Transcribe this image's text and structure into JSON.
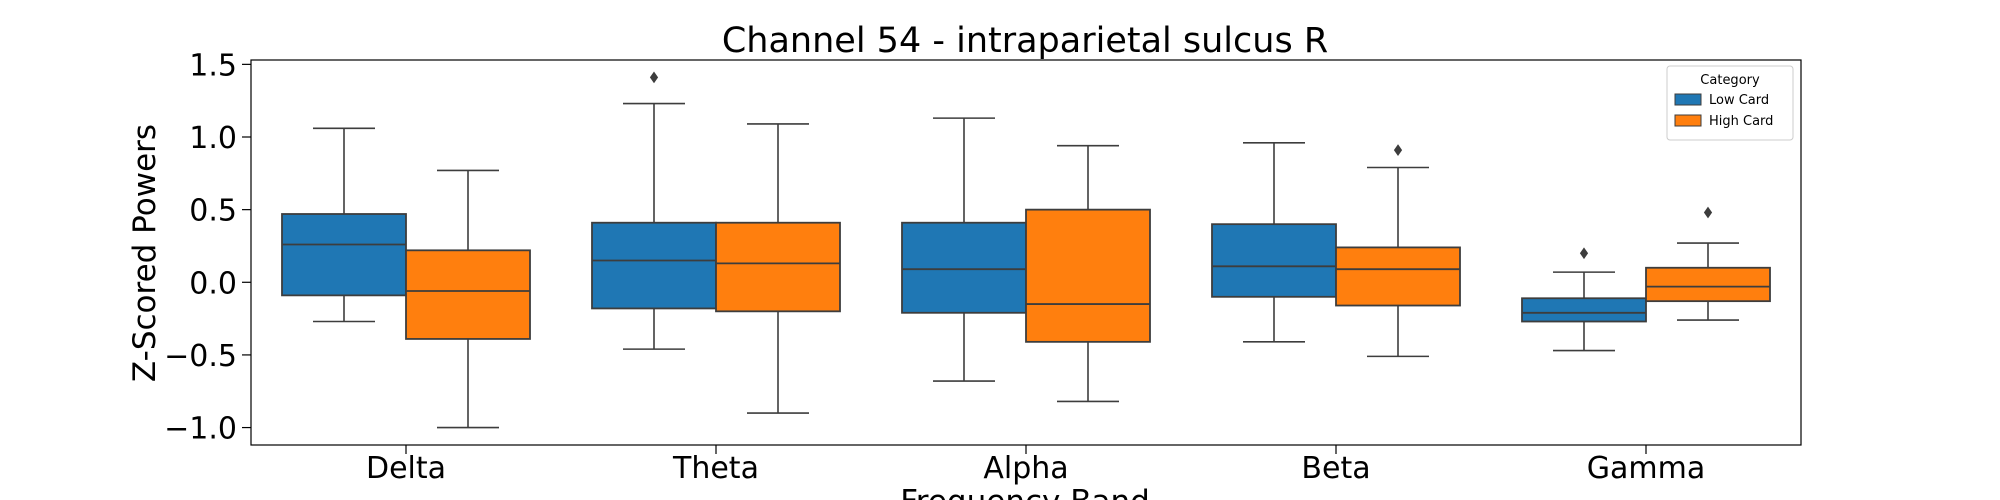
{
  "chart_data": {
    "type": "box",
    "title": "Channel 54 - intraparietal sulcus R",
    "xlabel": "Frequency Band",
    "ylabel": "Z-Scored Powers",
    "ylim": [
      -1.12,
      1.53
    ],
    "yticks": [
      -1.0,
      -0.5,
      0.0,
      0.5,
      1.0,
      1.5
    ],
    "ytick_labels": [
      "−1.0",
      "−0.5",
      "0.0",
      "0.5",
      "1.0",
      "1.5"
    ],
    "grid": false,
    "categories": [
      "Delta",
      "Theta",
      "Alpha",
      "Beta",
      "Gamma"
    ],
    "legend": {
      "title": "Category",
      "position": "top-right"
    },
    "series": [
      {
        "name": "Low Card",
        "color": "#1f77b4",
        "boxes": [
          {
            "whisker_low": -0.27,
            "q1": -0.09,
            "median": 0.26,
            "q3": 0.47,
            "whisker_high": 1.06,
            "outliers": []
          },
          {
            "whisker_low": -0.46,
            "q1": -0.18,
            "median": 0.15,
            "q3": 0.41,
            "whisker_high": 1.23,
            "outliers": [
              1.41
            ]
          },
          {
            "whisker_low": -0.68,
            "q1": -0.21,
            "median": 0.09,
            "q3": 0.41,
            "whisker_high": 1.13,
            "outliers": []
          },
          {
            "whisker_low": -0.41,
            "q1": -0.1,
            "median": 0.11,
            "q3": 0.4,
            "whisker_high": 0.96,
            "outliers": []
          },
          {
            "whisker_low": -0.47,
            "q1": -0.27,
            "median": -0.21,
            "q3": -0.11,
            "whisker_high": 0.07,
            "outliers": [
              0.2
            ]
          }
        ]
      },
      {
        "name": "High Card",
        "color": "#ff7f0e",
        "boxes": [
          {
            "whisker_low": -1.0,
            "q1": -0.39,
            "median": -0.06,
            "q3": 0.22,
            "whisker_high": 0.77,
            "outliers": []
          },
          {
            "whisker_low": -0.9,
            "q1": -0.2,
            "median": 0.13,
            "q3": 0.41,
            "whisker_high": 1.09,
            "outliers": []
          },
          {
            "whisker_low": -0.82,
            "q1": -0.41,
            "median": -0.15,
            "q3": 0.5,
            "whisker_high": 0.94,
            "outliers": []
          },
          {
            "whisker_low": -0.51,
            "q1": -0.16,
            "median": 0.09,
            "q3": 0.24,
            "whisker_high": 0.79,
            "outliers": [
              0.91
            ]
          },
          {
            "whisker_low": -0.26,
            "q1": -0.13,
            "median": -0.03,
            "q3": 0.1,
            "whisker_high": 0.27,
            "outliers": [
              0.48
            ]
          }
        ]
      }
    ]
  }
}
